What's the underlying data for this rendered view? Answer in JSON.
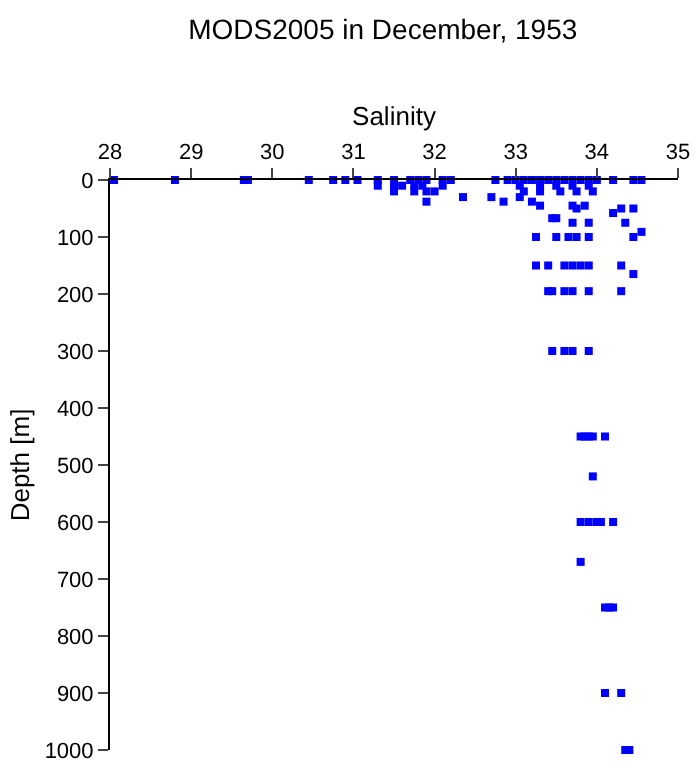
{
  "chart_data": {
    "type": "scatter",
    "title": "MODS2005 in December, 1953",
    "xlabel": "Salinity",
    "ylabel": "Depth [m]",
    "x": [
      28.05,
      28.8,
      29.65,
      29.7,
      30.45,
      30.75,
      30.9,
      31.05,
      31.3,
      31.5,
      31.7,
      31.8,
      31.9,
      32.1,
      32.2,
      32.75,
      32.9,
      33.0,
      33.1,
      33.2,
      33.3,
      33.4,
      33.5,
      33.6,
      33.7,
      33.8,
      33.9,
      34.0,
      34.2,
      34.45,
      34.55,
      31.3,
      31.5,
      31.6,
      31.75,
      31.85,
      32.1,
      33.05,
      33.3,
      33.5,
      33.7,
      33.9,
      31.5,
      31.75,
      31.9,
      32.0,
      33.1,
      33.3,
      33.55,
      33.75,
      33.95,
      32.35,
      32.7,
      33.05,
      31.9,
      32.85,
      33.2,
      33.3,
      33.7,
      33.85,
      33.75,
      34.3,
      34.45,
      34.2,
      33.45,
      33.5,
      33.7,
      33.9,
      34.35,
      34.55,
      33.25,
      33.5,
      33.65,
      33.75,
      33.9,
      34.45,
      33.25,
      33.4,
      33.6,
      33.7,
      33.8,
      33.9,
      34.3,
      34.45,
      33.4,
      33.45,
      33.6,
      33.7,
      33.9,
      34.3,
      33.45,
      33.6,
      33.7,
      33.9,
      33.8,
      33.85,
      33.9,
      33.95,
      34.1,
      33.95,
      33.8,
      33.9,
      34.0,
      34.05,
      34.2,
      33.8,
      34.1,
      34.15,
      34.2,
      34.1,
      34.3,
      34.35,
      34.4
    ],
    "values": [
      0,
      0,
      0,
      0,
      0,
      0,
      0,
      0,
      0,
      0,
      0,
      0,
      0,
      0,
      0,
      0,
      0,
      0,
      0,
      0,
      0,
      0,
      0,
      0,
      0,
      0,
      0,
      0,
      0,
      0,
      0,
      10,
      10,
      10,
      10,
      10,
      10,
      10,
      10,
      10,
      10,
      10,
      20,
      20,
      20,
      20,
      20,
      20,
      20,
      20,
      20,
      30,
      30,
      30,
      38,
      38,
      38,
      45,
      45,
      45,
      50,
      50,
      50,
      58,
      67,
      67,
      75,
      75,
      75,
      91,
      100,
      100,
      100,
      100,
      100,
      100,
      150,
      150,
      150,
      150,
      150,
      150,
      150,
      165,
      195,
      195,
      195,
      195,
      195,
      195,
      300,
      300,
      300,
      300,
      450,
      450,
      450,
      450,
      450,
      520,
      600,
      600,
      600,
      600,
      600,
      670,
      750,
      750,
      750,
      900,
      900,
      1000,
      1000
    ],
    "color": "#0000ff",
    "marker": "square",
    "xlim": [
      28,
      35
    ],
    "xticks": [
      28,
      29,
      30,
      31,
      32,
      33,
      34,
      35
    ],
    "ylim": [
      1000,
      0
    ],
    "yticks": [
      0,
      100,
      200,
      300,
      400,
      500,
      600,
      700,
      800,
      900,
      1000
    ],
    "grid": false
  }
}
